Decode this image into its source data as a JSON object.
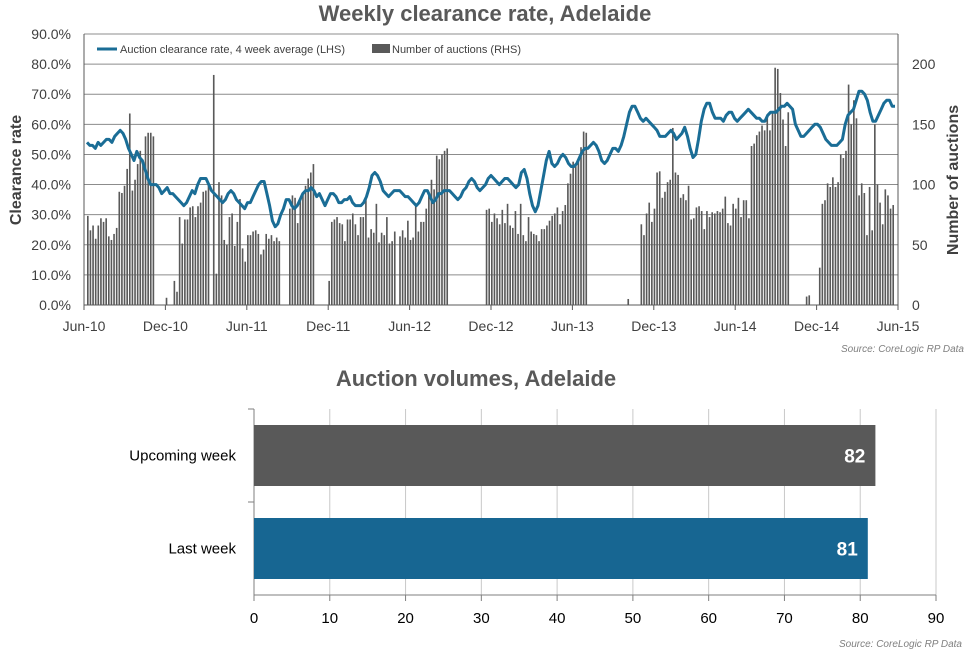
{
  "chart_data": [
    {
      "type": "line",
      "title": "Weekly clearance rate, Adelaide",
      "ylabel": "Clearance rate",
      "y2label": "Number of auctions",
      "x_ticks": [
        "Jun-10",
        "Dec-10",
        "Jun-11",
        "Dec-11",
        "Jun-12",
        "Dec-12",
        "Jun-13",
        "Dec-13",
        "Jun-14",
        "Dec-14",
        "Jun-15"
      ],
      "y_ticks": [
        "0.0%",
        "10.0%",
        "20.0%",
        "30.0%",
        "40.0%",
        "50.0%",
        "60.0%",
        "70.0%",
        "80.0%",
        "90.0%"
      ],
      "y2_ticks": [
        "0",
        "50",
        "100",
        "150",
        "200"
      ],
      "ylim": [
        0,
        90
      ],
      "y2lim": [
        0,
        225
      ],
      "grid": true,
      "legend_position": "top-left",
      "source": "Source: CoreLogic RP Data",
      "colors": {
        "line": "#1a6d96",
        "bars": "#595959"
      },
      "series": [
        {
          "name": "Auction clearance rate, 4 week average (LHS)",
          "kind": "line",
          "axis": "left",
          "values": [
            54,
            53,
            53,
            52,
            54,
            53,
            54,
            55,
            55,
            54,
            56,
            57,
            58,
            57,
            55,
            52,
            50,
            48,
            51,
            49,
            48,
            45,
            42,
            40,
            40,
            40,
            39,
            37,
            38,
            39,
            37,
            37,
            36,
            35,
            34,
            33,
            34,
            36,
            38,
            37,
            40,
            42,
            42,
            42,
            40,
            38,
            37,
            36,
            35,
            34,
            35,
            37,
            38,
            37,
            35,
            34,
            33,
            32,
            34,
            34,
            36,
            38,
            40,
            41,
            41,
            37,
            33,
            28,
            26,
            27,
            30,
            32,
            35,
            35,
            33,
            32,
            33,
            35,
            37,
            38,
            38,
            39,
            38,
            36,
            37,
            35,
            33,
            35,
            37,
            37,
            36,
            34,
            34,
            35,
            35,
            36,
            34,
            33,
            33,
            33,
            34,
            36,
            39,
            43,
            44,
            43,
            41,
            38,
            37,
            36,
            37,
            38,
            38,
            38,
            37,
            36,
            36,
            35,
            34,
            33,
            34,
            36,
            38,
            38,
            36,
            34,
            35,
            37,
            37,
            38,
            38,
            38,
            37,
            36,
            35,
            36,
            38,
            39,
            41,
            42,
            41,
            39,
            38,
            39,
            40,
            42,
            43,
            42,
            41,
            40,
            41,
            42,
            42,
            41,
            40,
            39,
            40,
            44,
            45,
            42,
            37,
            33,
            31,
            33,
            38,
            43,
            48,
            51,
            47,
            46,
            47,
            49,
            50,
            49,
            47,
            46,
            46,
            47,
            49,
            51,
            52,
            52,
            53,
            54,
            53,
            51,
            48,
            47,
            48,
            50,
            52,
            52,
            51,
            53,
            56,
            60,
            64,
            66,
            66,
            64,
            62,
            61,
            62,
            61,
            60,
            59,
            58,
            56,
            56,
            56,
            57,
            58,
            57,
            55,
            56,
            57,
            59,
            56,
            52,
            49,
            50,
            55,
            61,
            65,
            67,
            67,
            64,
            62,
            62,
            62,
            61,
            63,
            64,
            64,
            62,
            61,
            62,
            63,
            64,
            65,
            64,
            63,
            62,
            62,
            61,
            61,
            63,
            64,
            64,
            64,
            65,
            66,
            66,
            67,
            66,
            65,
            60,
            58,
            56,
            56,
            57,
            58,
            59,
            60,
            60,
            59,
            57,
            55,
            54,
            53,
            53,
            53,
            54,
            55,
            60,
            63,
            64,
            65,
            68,
            71,
            71,
            70,
            68,
            64,
            61,
            61,
            63,
            65,
            67,
            68,
            68,
            66,
            66
          ]
        },
        {
          "name": "Number of auctions (RHS)",
          "kind": "bar",
          "axis": "right",
          "values": [
            74,
            62,
            66,
            55,
            66,
            72,
            69,
            72,
            57,
            54,
            59,
            64,
            94,
            93,
            99,
            113,
            159,
            95,
            104,
            117,
            128,
            120,
            140,
            143,
            143,
            140,
            0,
            0,
            0,
            0,
            6,
            0,
            0,
            20,
            11,
            73,
            51,
            71,
            71,
            81,
            82,
            73,
            82,
            85,
            94,
            95,
            101,
            0,
            191,
            26,
            102,
            91,
            54,
            50,
            73,
            76,
            49,
            69,
            88,
            47,
            36,
            58,
            58,
            61,
            62,
            59,
            42,
            46,
            59,
            55,
            58,
            53,
            56,
            53,
            0,
            0,
            0,
            80,
            91,
            89,
            68,
            87,
            93,
            99,
            105,
            110,
            117,
            0,
            0,
            0,
            0,
            0,
            20,
            69,
            71,
            73,
            68,
            67,
            53,
            71,
            71,
            76,
            67,
            58,
            73,
            73,
            90,
            56,
            63,
            60,
            84,
            52,
            60,
            58,
            73,
            51,
            53,
            61,
            0,
            57,
            62,
            56,
            70,
            54,
            56,
            84,
            61,
            69,
            69,
            80,
            93,
            104,
            96,
            124,
            121,
            125,
            128,
            130,
            0,
            0,
            0,
            0,
            0,
            0,
            0,
            0,
            0,
            0,
            0,
            0,
            0,
            0,
            79,
            80,
            69,
            76,
            72,
            67,
            79,
            68,
            84,
            66,
            64,
            78,
            59,
            84,
            58,
            53,
            73,
            61,
            59,
            58,
            53,
            63,
            63,
            66,
            70,
            74,
            76,
            81,
            67,
            78,
            83,
            101,
            109,
            119,
            116,
            120,
            131,
            144,
            143,
            0,
            0,
            0,
            0,
            0,
            0,
            0,
            0,
            0,
            0,
            0,
            0,
            0,
            0,
            0,
            5,
            0,
            0,
            0,
            0,
            67,
            58,
            76,
            85,
            69,
            80,
            110,
            111,
            89,
            94,
            102,
            104,
            147,
            110,
            108,
            89,
            92,
            87,
            99,
            71,
            72,
            81,
            82,
            78,
            63,
            78,
            73,
            77,
            76,
            78,
            77,
            80,
            90,
            68,
            66,
            84,
            80,
            89,
            73,
            87,
            87,
            72,
            132,
            134,
            141,
            144,
            149,
            145,
            156,
            145,
            160,
            197,
            196,
            176,
            154,
            132,
            160,
            0,
            0,
            0,
            0,
            0,
            0,
            7,
            8,
            0,
            0,
            0,
            31,
            84,
            87,
            101,
            98,
            106,
            98,
            102,
            125,
            122,
            128,
            183,
            150,
            170,
            155,
            91,
            101,
            93,
            58,
            98,
            62,
            150,
            100,
            85,
            67,
            96,
            91,
            80,
            83
          ]
        }
      ]
    },
    {
      "type": "bar",
      "title": "Auction volumes, Adelaide",
      "source": "Source: CoreLogic  RP Data",
      "categories": [
        "Upcoming week",
        "Last week"
      ],
      "values": [
        82,
        81
      ],
      "value_labels": [
        "82",
        "81"
      ],
      "x_ticks": [
        "0",
        "10",
        "20",
        "30",
        "40",
        "50",
        "60",
        "70",
        "80",
        "90"
      ],
      "xlim": [
        0,
        90
      ],
      "grid": true,
      "colors": {
        "Upcoming week": "#595959",
        "Last week": "#176692"
      }
    }
  ]
}
